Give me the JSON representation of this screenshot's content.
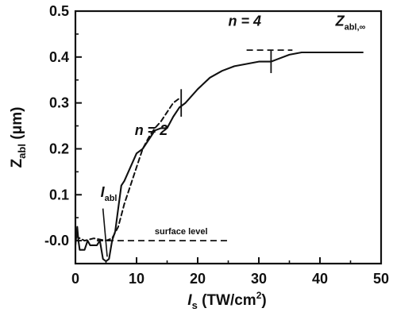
{
  "chart_data": {
    "type": "line",
    "xlim": [
      0,
      50
    ],
    "ylim": [
      -0.05,
      0.5
    ],
    "x_ticks": [
      "0",
      "10",
      "20",
      "30",
      "40",
      "50"
    ],
    "y_ticks": [
      "-0.0",
      "0.1",
      "0.2",
      "0.3",
      "0.4",
      "0.5"
    ],
    "xlabel": {
      "main": "I",
      "sub": "s",
      "rest": " (TW/cm",
      "sup": "2",
      "end": ")"
    },
    "ylabel": {
      "main": "Z",
      "sub": "abl",
      "rest": " (μm)"
    },
    "series": [
      {
        "style": "solid",
        "x": [
          0.0,
          0.3,
          0.5,
          0.7,
          1.5,
          2.0,
          2.4,
          3.5,
          4.0,
          4.5,
          5.0,
          5.5,
          6.0,
          6.5,
          7.0,
          7.5,
          8.0,
          9.0,
          10.0,
          11.0,
          12.0,
          13.0,
          14.0,
          15.0,
          16.0,
          17.0,
          18.0,
          20.0,
          22.0,
          24.0,
          26.0,
          28.0,
          30.0,
          32.0,
          33.0,
          35.0,
          37.0,
          40.0,
          43.0,
          47.0
        ],
        "y": [
          -0.01,
          0.03,
          0.0,
          -0.02,
          -0.02,
          0.0,
          -0.01,
          -0.01,
          0.0,
          -0.04,
          -0.045,
          -0.04,
          0.0,
          0.02,
          0.07,
          0.12,
          0.13,
          0.16,
          0.19,
          0.2,
          0.22,
          0.24,
          0.245,
          0.245,
          0.27,
          0.29,
          0.3,
          0.33,
          0.355,
          0.37,
          0.38,
          0.385,
          0.39,
          0.39,
          0.395,
          0.405,
          0.41,
          0.41,
          0.41,
          0.41
        ]
      },
      {
        "style": "dashed",
        "x": [
          0.0,
          1.5,
          3.0,
          5.0,
          6.0,
          7.0,
          8.0,
          9.0,
          10.0,
          11.0,
          12.0,
          13.0,
          14.0,
          15.0,
          16.0,
          17.0
        ],
        "y": [
          0.01,
          0.0,
          0.005,
          0.0,
          0.005,
          0.03,
          0.08,
          0.12,
          0.16,
          0.2,
          0.225,
          0.245,
          0.26,
          0.28,
          0.3,
          0.31
        ]
      }
    ],
    "reference_lines": [
      {
        "style": "dashed",
        "y": 0.0,
        "x_start": 3.5,
        "x_end": 25.0,
        "label": "surface level"
      },
      {
        "style": "dashed",
        "y": 0.415,
        "x_start": 28.0,
        "x_end": 35.5
      }
    ],
    "markers": [
      {
        "type": "vertical-tick",
        "x": 17.3,
        "y_low": 0.27,
        "y_high": 0.33
      },
      {
        "type": "vertical-tick",
        "x": 32.0,
        "y_low": 0.365,
        "y_high": 0.415
      }
    ],
    "annotations": [
      {
        "text": "n = 2",
        "x": 9.7,
        "y": 0.23
      },
      {
        "text": "n = 4",
        "x": 25.0,
        "y": 0.468
      },
      {
        "label_main": "I",
        "label_sub": "abl",
        "x": 4.1,
        "y": 0.095,
        "arrow_to_x": 5.2,
        "arrow_to_y": -0.035
      },
      {
        "label_main": "Z",
        "label_sub": "abl,∞",
        "x": 45.0,
        "y": 0.468
      }
    ]
  }
}
